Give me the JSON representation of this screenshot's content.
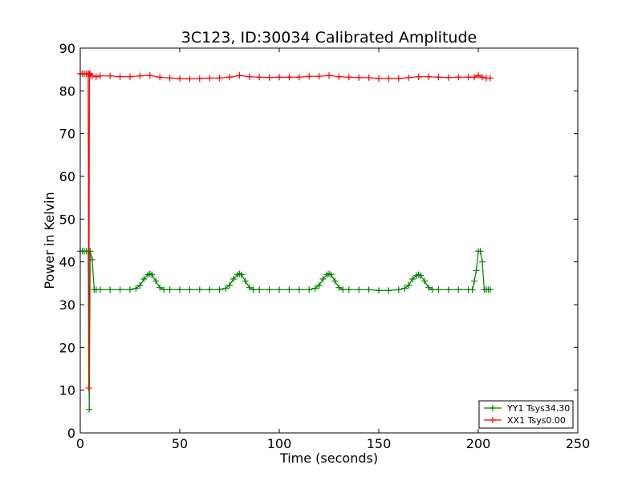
{
  "chart_data": {
    "type": "line",
    "title": "3C123, ID:30034 Calibrated Amplitude",
    "xlabel": "Time (seconds)",
    "ylabel": "Power in Kelvin",
    "xlim": [
      0,
      250
    ],
    "ylim": [
      0,
      90
    ],
    "xticks": [
      "0",
      "50",
      "100",
      "150",
      "200",
      "250"
    ],
    "yticks": [
      "0",
      "10",
      "20",
      "30",
      "40",
      "50",
      "60",
      "70",
      "80",
      "90"
    ],
    "grid": false,
    "legend": "lower-right",
    "series": [
      {
        "name": "YY1 Tsys34.30",
        "color": "#008000",
        "marker": "plus",
        "x": [
          0,
          1,
          2,
          3,
          4,
          4.5,
          5,
          6,
          7,
          8,
          10,
          15,
          20,
          25,
          28,
          30,
          32,
          34,
          35,
          36,
          38,
          40,
          42,
          45,
          50,
          55,
          60,
          65,
          70,
          73,
          75,
          77,
          79,
          80,
          81,
          83,
          85,
          87,
          90,
          95,
          100,
          105,
          110,
          115,
          118,
          120,
          122,
          124,
          125,
          126,
          128,
          130,
          132,
          135,
          140,
          145,
          150,
          155,
          160,
          163,
          165,
          167,
          169,
          170,
          171,
          173,
          175,
          177,
          180,
          185,
          190,
          195,
          197,
          198,
          199,
          200,
          201,
          202,
          203,
          204,
          205,
          206
        ],
        "y": [
          42.5,
          42.5,
          42.5,
          42.5,
          42.5,
          5.5,
          42.5,
          40.5,
          33.5,
          33.5,
          33.5,
          33.5,
          33.5,
          33.5,
          33.8,
          34.5,
          36,
          37,
          37.2,
          37,
          35.5,
          34,
          33.5,
          33.5,
          33.5,
          33.5,
          33.5,
          33.5,
          33.5,
          33.8,
          34.5,
          36,
          37,
          37.2,
          37,
          35.5,
          34,
          33.5,
          33.5,
          33.5,
          33.5,
          33.5,
          33.5,
          33.5,
          33.8,
          34.5,
          36,
          37,
          37.2,
          37,
          35.5,
          34,
          33.5,
          33.5,
          33.5,
          33.5,
          33.3,
          33.3,
          33.5,
          33.8,
          34.5,
          36,
          36.8,
          37,
          36.8,
          35.5,
          34,
          33.5,
          33.5,
          33.5,
          33.5,
          33.5,
          33.5,
          35.5,
          38,
          42.5,
          42.5,
          40,
          33.5,
          33.5,
          33.5,
          33.5
        ]
      },
      {
        "name": "XX1 Tsys0.00",
        "color": "#ff0000",
        "marker": "plus",
        "x": [
          0,
          1,
          2,
          3,
          4,
          4.3,
          4.6,
          5,
          6,
          8,
          10,
          15,
          20,
          25,
          30,
          35,
          40,
          45,
          50,
          55,
          60,
          65,
          70,
          75,
          80,
          85,
          90,
          95,
          100,
          105,
          110,
          115,
          120,
          125,
          130,
          135,
          140,
          145,
          150,
          155,
          160,
          165,
          170,
          175,
          180,
          185,
          190,
          195,
          198,
          200,
          202,
          204,
          206
        ],
        "y": [
          84,
          84,
          84,
          84,
          84,
          10.5,
          84,
          83.8,
          83.5,
          83.3,
          83.5,
          83.5,
          83.3,
          83.3,
          83.5,
          83.6,
          83.2,
          83,
          82.9,
          82.8,
          82.9,
          83,
          83,
          83.2,
          83.6,
          83.3,
          83.2,
          83.1,
          83.2,
          83.2,
          83.2,
          83.4,
          83.4,
          83.6,
          83.3,
          83.2,
          83.1,
          83.1,
          82.9,
          82.9,
          82.9,
          83.1,
          83.3,
          83.3,
          83.2,
          83.1,
          83.2,
          83.2,
          83.2,
          83.6,
          83.2,
          83,
          83
        ]
      }
    ]
  }
}
